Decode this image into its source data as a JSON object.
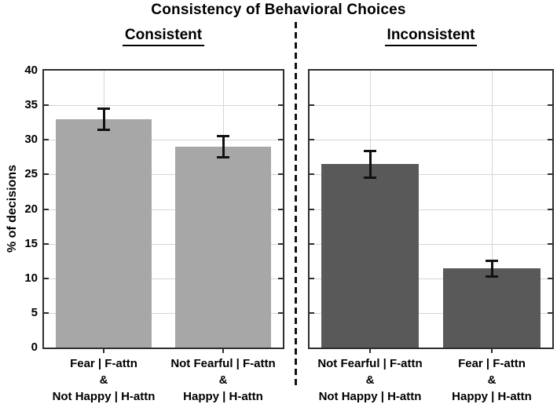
{
  "title": "Consistency of Behavioral Choices",
  "colors": {
    "consistent_bar": "#a7a7a7",
    "inconsistent_bar": "#595959",
    "axis": "#2e2e2e",
    "grid": "#d6d6d6",
    "error_bar": "#111111",
    "text": "#000000"
  },
  "chart_data": {
    "type": "bar",
    "title": "Consistency of Behavioral Choices",
    "ylabel": "% of decisions",
    "ylim": [
      0,
      40
    ],
    "yticks": [
      0,
      5,
      10,
      15,
      20,
      25,
      30,
      35,
      40
    ],
    "grid": true,
    "legend": "none",
    "panels": [
      {
        "key": "consistent",
        "label": "Consistent",
        "bar_color": "#a7a7a7",
        "categories": [
          [
            "Fear | F-attn",
            "&",
            "Not Happy | H-attn"
          ],
          [
            "Not Fearful | F-attn",
            "&",
            "Happy | H-attn"
          ]
        ],
        "values": [
          33,
          29
        ],
        "errors": [
          1.7,
          1.7
        ]
      },
      {
        "key": "inconsistent",
        "label": "Inconsistent",
        "bar_color": "#595959",
        "categories": [
          [
            "Not Fearful | F-attn",
            "&",
            "Not Happy | H-attn"
          ],
          [
            "Fear | F-attn",
            "&",
            "Happy | H-attn"
          ]
        ],
        "values": [
          26.5,
          11.4
        ],
        "errors": [
          2.1,
          1.3
        ]
      }
    ]
  }
}
